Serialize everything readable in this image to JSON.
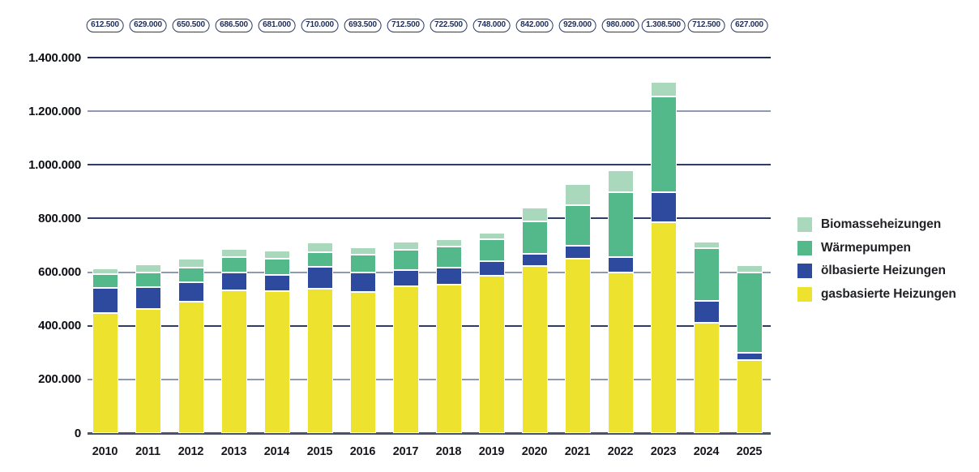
{
  "chart_data": {
    "type": "bar",
    "stacked": true,
    "title": "",
    "categories": [
      "2010",
      "2011",
      "2012",
      "2013",
      "2014",
      "2015",
      "2016",
      "2017",
      "2018",
      "2019",
      "2020",
      "2021",
      "2022",
      "2023",
      "2024",
      "2025"
    ],
    "totals_display": [
      "612.500",
      "629.000",
      "650.500",
      "686.500",
      "681.000",
      "710.000",
      "693.500",
      "712.500",
      "722.500",
      "748.000",
      "842.000",
      "929.000",
      "980.000",
      "1.308.500",
      "712.500",
      "627.000"
    ],
    "totals": [
      612500,
      629000,
      650500,
      686500,
      681000,
      710000,
      693500,
      712500,
      722500,
      748000,
      842000,
      929000,
      980000,
      1308500,
      712500,
      627000
    ],
    "series": [
      {
        "name": "gasbasierte Heizungen",
        "color": "#ede32e",
        "values": [
          448500,
          462000,
          489000,
          532500,
          529000,
          539000,
          526500,
          546000,
          552500,
          587000,
          623000,
          650500,
          598500,
          785500,
          410000,
          273000
        ]
      },
      {
        "name": "ölbasierte Heizungen",
        "color": "#2e4a9e",
        "values": [
          94000,
          82000,
          74000,
          65000,
          62000,
          82000,
          71500,
          62000,
          64000,
          54000,
          44000,
          47500,
          56500,
          112500,
          83500,
          27000
        ]
      },
      {
        "name": "Wärmepumpen",
        "color": "#53b98b",
        "values": [
          50000,
          55500,
          54500,
          59500,
          60000,
          54500,
          66000,
          74500,
          79500,
          82000,
          122000,
          152500,
          243500,
          358000,
          195000,
          300000
        ]
      },
      {
        "name": "Biomasseheizungen",
        "color": "#a9d8bd",
        "values": [
          20000,
          29500,
          33000,
          29500,
          30000,
          34500,
          29500,
          30000,
          26500,
          25000,
          53000,
          78500,
          81500,
          52500,
          24000,
          27000
        ]
      }
    ],
    "legend_order": [
      3,
      2,
      1,
      0
    ],
    "legend_position": "right",
    "y_ticks": [
      1400000,
      1200000,
      1000000,
      800000,
      600000,
      400000,
      200000,
      0
    ],
    "y_tick_labels": [
      "1.400.000",
      "1.200.000",
      "1.000.000",
      "800.000",
      "600.000",
      "400.000",
      "200.000",
      "0"
    ],
    "ylim": [
      0,
      1400000
    ],
    "grid": true,
    "colors": {
      "pill_border": "#2a3a68",
      "pill_text": "#1e2e5a",
      "gridline_dark": "#2e3d66",
      "gridline_light": "#8e99b3",
      "axis_line": "#49536a"
    }
  }
}
